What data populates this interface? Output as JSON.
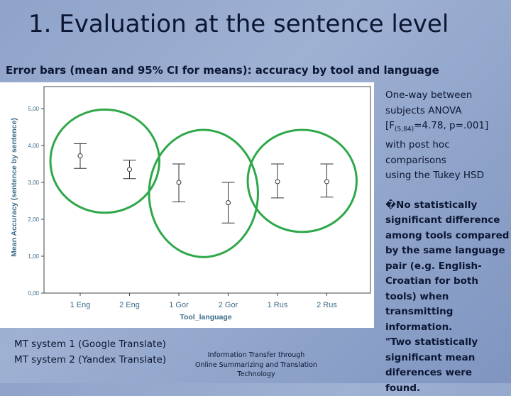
{
  "slide": {
    "title": "1. Evaluation at the sentence level",
    "subtitle": "Error bars (mean and 95% CI for means): accuracy by tool and language"
  },
  "anova": {
    "line1": "One-way between",
    "line2": "subjects ANOVA",
    "stat_prefix": "[F",
    "stat_sub": "(5,84)",
    "stat_rest": "=4.78, p=.001]",
    "line4": "with post hoc",
    "line5": "comparisons",
    "line6": "using the Tukey HSD"
  },
  "findings": {
    "finding1": "�No statistically significant difference among tools compared by the same language pair (e.g. English-Croatian for both tools) when transmitting information.",
    "finding2": "\"Two statistically significant mean diferences were found."
  },
  "mt_systems": {
    "system1": "MT system 1 (Google Translate)",
    "system2": "MT system 2 (Yandex Translate)"
  },
  "footer": {
    "line1": "Information Transfer through",
    "line2": "Online Summarizing and Translation",
    "line3": "Technology"
  },
  "chart_data": {
    "type": "errorbar",
    "xlabel": "Tool_language",
    "ylabel": "Mean Accuracy (sentence by sentence)",
    "ylim": [
      0,
      5.3
    ],
    "yticks": [
      "0,00",
      "1,00",
      "2,00",
      "3,00",
      "4,00",
      "5,00"
    ],
    "categories": [
      "1 Eng",
      "2 Eng",
      "1 Gor",
      "2 Gor",
      "1 Rus",
      "2 Rus"
    ],
    "mean": [
      3.72,
      3.35,
      3.0,
      2.45,
      3.02,
      3.02
    ],
    "lower": [
      3.38,
      3.1,
      2.47,
      1.9,
      2.58,
      2.6
    ],
    "upper": [
      4.05,
      3.6,
      3.5,
      3.0,
      3.5,
      3.5
    ],
    "grid": false,
    "highlight_groups": [
      [
        0,
        1
      ],
      [
        2,
        3
      ],
      [
        4,
        5
      ]
    ],
    "colors": {
      "circle": "#2ea84a",
      "marker": "#333333",
      "axis_text": "#3a6b8a",
      "background": "#ffffff",
      "frame": "#444444"
    }
  }
}
